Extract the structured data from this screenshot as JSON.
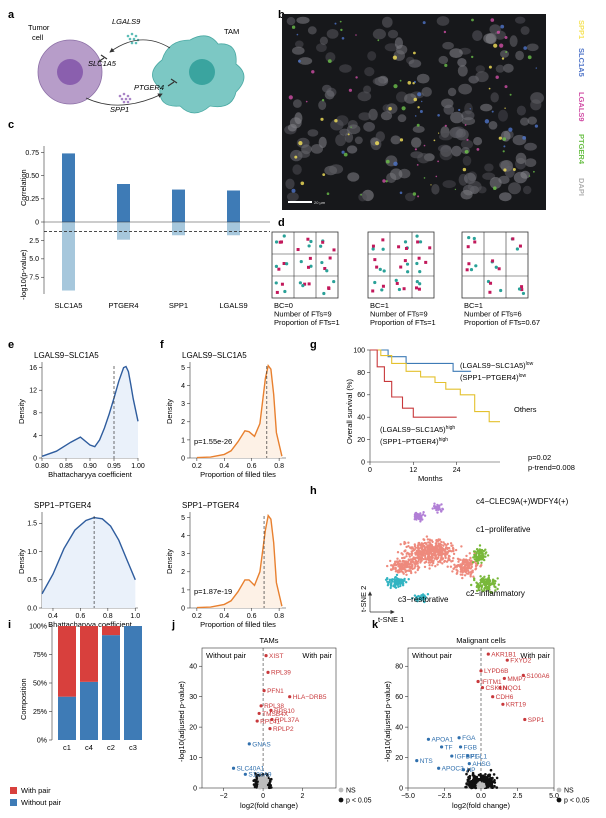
{
  "panel_labels": [
    "a",
    "b",
    "c",
    "d",
    "e",
    "f",
    "g",
    "h",
    "i",
    "j",
    "k"
  ],
  "schematic": {
    "tumor_label": "Tumor\ncell",
    "tam_label": "TAM",
    "ligand1": "LGALS9",
    "receptor1": "SLC1A5",
    "receptor2": "PTGER4",
    "ligand2": "SPP1",
    "tumor_color": "#b79dc9",
    "tam_color": "#7cc8c4"
  },
  "micrograph": {
    "channels": [
      {
        "name": "SPP1",
        "color": "#f6e35a"
      },
      {
        "name": "SLC1A5",
        "color": "#4f74c8"
      },
      {
        "name": "LGALS9",
        "color": "#d14fa6"
      },
      {
        "name": "PTGER4",
        "color": "#6cc04a"
      },
      {
        "name": "DAPI",
        "color": "#d9d9d9"
      }
    ],
    "scalebar": "20 µm"
  },
  "tiles": {
    "grids": [
      {
        "lines": [
          "BC=0",
          "Number of FTs=9",
          "Proportion of FTs=1"
        ]
      },
      {
        "lines": [
          "BC=1",
          "Number of FTs=9",
          "Proportion of FTs=1"
        ]
      },
      {
        "lines": [
          "BC=1",
          "Number of FTs=6",
          "Proportion of FTs=0.67"
        ]
      }
    ]
  },
  "chart_data": [
    {
      "panel": "c",
      "type": "bar",
      "categories": [
        "SLC1A5",
        "PTGER4",
        "SPP1",
        "LGALS9"
      ],
      "series": [
        {
          "values": [
            0.74,
            0.41,
            0.35,
            0.34
          ]
        },
        {
          "values": [
            9.3,
            2.4,
            1.8,
            1.8
          ]
        }
      ],
      "ylabel_top": "Correlation",
      "ylabel_bottom": "-log10(p-value)",
      "top_ticks": [
        "0",
        "0.25",
        "0.50",
        "0.75"
      ],
      "bottom_ticks": [
        "2.5",
        "5.0",
        "7.5"
      ],
      "ylim_top": [
        0,
        0.82
      ],
      "ylim_bottom": [
        0,
        9.5
      ],
      "threshold": 1.3,
      "colors": [
        "#3e7bb6",
        "#a6c7dc"
      ]
    },
    {
      "panel": "e",
      "type": "area",
      "plots": [
        {
          "title": "LGALS9−SLC1A5",
          "xlabel": "Bhattacharyya coefficient",
          "ylabel": "Density",
          "xlim": [
            0.8,
            1.0
          ],
          "ylim": [
            0,
            17
          ],
          "xticks": [
            "0.80",
            "0.85",
            "0.90",
            "0.95",
            "1.00"
          ],
          "yticks": [
            "0",
            "4",
            "8",
            "12",
            "16"
          ],
          "x": [
            0.8,
            0.83,
            0.86,
            0.88,
            0.9,
            0.91,
            0.92,
            0.93,
            0.94,
            0.95,
            0.96,
            0.97,
            0.975,
            0.98,
            0.985,
            0.99,
            1.0
          ],
          "y": [
            0.3,
            1.2,
            2.8,
            3.7,
            2.3,
            2.0,
            3.2,
            5.3,
            7.8,
            10.6,
            13.6,
            16.0,
            16.2,
            15.3,
            13.0,
            10.5,
            6.5
          ],
          "vline": 0.95
        },
        {
          "title": "SPP1−PTGER4",
          "xlabel": "Bhattacharyya coefficient",
          "ylabel": "Density",
          "xlim": [
            0.32,
            1.02
          ],
          "ylim": [
            0,
            1.7
          ],
          "xticks": [
            "0.4",
            "0.6",
            "0.8",
            "1.0"
          ],
          "yticks": [
            "0.0",
            "0.5",
            "1.0",
            "1.5"
          ],
          "x": [
            0.32,
            0.4,
            0.48,
            0.56,
            0.64,
            0.7,
            0.76,
            0.82,
            0.88,
            0.94,
            1.0
          ],
          "y": [
            0.25,
            0.6,
            1.05,
            1.38,
            1.55,
            1.6,
            1.58,
            1.45,
            1.2,
            0.85,
            0.5
          ],
          "vline": 0.7
        }
      ]
    },
    {
      "panel": "f",
      "type": "area",
      "plots": [
        {
          "title": "LGALS9−SLC1A5",
          "xlabel": "Proportion of filled tiles",
          "ylabel": "Density",
          "xlim": [
            0.15,
            0.85
          ],
          "ylim": [
            0,
            5.3
          ],
          "xticks": [
            "0.2",
            "0.4",
            "0.6",
            "0.8"
          ],
          "yticks": [
            "0",
            "1",
            "2",
            "3",
            "4",
            "5"
          ],
          "x": [
            0.2,
            0.3,
            0.4,
            0.45,
            0.5,
            0.55,
            0.58,
            0.62,
            0.66,
            0.7,
            0.72,
            0.74,
            0.76,
            0.78,
            0.82
          ],
          "y": [
            0.02,
            0.05,
            0.2,
            0.4,
            0.9,
            1.5,
            1.45,
            1.2,
            1.9,
            4.4,
            5.1,
            4.9,
            3.5,
            1.4,
            0.1
          ],
          "vline": 0.71,
          "pvalue": "p=1.55e-26"
        },
        {
          "title": "SPP1−PTGER4",
          "xlabel": "Proportion of filled tiles",
          "ylabel": "Density",
          "xlim": [
            0.15,
            0.85
          ],
          "ylim": [
            0,
            5.3
          ],
          "xticks": [
            "0.2",
            "0.4",
            "0.6",
            "0.8"
          ],
          "yticks": [
            "0",
            "1",
            "2",
            "3",
            "4",
            "5"
          ],
          "x": [
            0.2,
            0.3,
            0.4,
            0.45,
            0.5,
            0.55,
            0.58,
            0.62,
            0.66,
            0.7,
            0.72,
            0.74,
            0.76,
            0.78,
            0.82
          ],
          "y": [
            0.02,
            0.05,
            0.2,
            0.4,
            0.9,
            1.55,
            1.55,
            1.25,
            2.0,
            4.3,
            5.1,
            4.9,
            3.6,
            1.4,
            0.1
          ],
          "vline": 0.69,
          "pvalue": "p=1.87e-19"
        }
      ],
      "color": "#e8802f"
    },
    {
      "panel": "g",
      "type": "line",
      "ylabel": "Overall survival (%)",
      "xlabel": "Months",
      "xticks": [
        "0",
        "12",
        "24"
      ],
      "yticks": [
        "0",
        "20",
        "40",
        "60",
        "80",
        "100"
      ],
      "xlim": [
        0,
        36
      ],
      "ylim": [
        0,
        100
      ],
      "series": [
        {
          "color": "#3e7bb6",
          "x": [
            0,
            5,
            5,
            10,
            10,
            23,
            23,
            28
          ],
          "y": [
            100,
            100,
            94,
            94,
            88,
            88,
            81,
            81
          ]
        },
        {
          "color": "#e4c12e",
          "x": [
            0,
            3,
            3,
            6,
            6,
            10,
            10,
            14,
            14,
            18,
            18,
            21,
            21,
            25,
            25,
            29,
            29,
            33,
            33,
            36
          ],
          "y": [
            100,
            100,
            95,
            95,
            88,
            88,
            81,
            81,
            76,
            76,
            71,
            71,
            65,
            65,
            60,
            60,
            45,
            45,
            36,
            36
          ]
        },
        {
          "color": "#c8383b",
          "x": [
            0,
            2,
            2,
            4,
            4,
            6,
            6,
            9,
            9,
            12,
            12,
            24
          ],
          "y": [
            100,
            100,
            85,
            85,
            72,
            72,
            58,
            58,
            48,
            48,
            40,
            40
          ]
        }
      ],
      "labels": [
        "(LGALS9−SLC1A5)",
        "low",
        "(SPP1−PTGER4)",
        "low",
        "Others",
        "(LGALS9−SLC1A5)",
        "high",
        "(SPP1−PTGER4)",
        "high"
      ],
      "pvalues": [
        "p=0.02",
        "p-trend=0.008"
      ]
    },
    {
      "panel": "h",
      "type": "scatter",
      "xlabel": "t-SNE 1",
      "ylabel": "t-SNE 2",
      "clusters": [
        {
          "name": "c4−CLEC9A(+)WDFY4(+)",
          "color": "#b17fd6"
        },
        {
          "name": "c1−proliferative",
          "color": "#ee8a7d"
        },
        {
          "name": "c2−inflammatory",
          "color": "#79b83a"
        },
        {
          "name": "c3−restorative",
          "color": "#33b4c2"
        }
      ]
    },
    {
      "panel": "i",
      "type": "bar",
      "categories": [
        "c1",
        "c4",
        "c2",
        "c3"
      ],
      "series": [
        {
          "name": "Without pair",
          "values": [
            38,
            51,
            92,
            100
          ],
          "color": "#3e7bb6"
        },
        {
          "name": "With pair",
          "values": [
            62,
            49,
            8,
            0
          ],
          "color": "#d8403d"
        }
      ],
      "ylabel": "Composition",
      "yticks": [
        "0%",
        "25%",
        "50%",
        "75%",
        "100%"
      ],
      "ylim": [
        0,
        100
      ]
    },
    {
      "panel": "j",
      "type": "scatter",
      "title": "TAMs",
      "xlabel": "log2(fold change)",
      "ylabel": "-log10(adjusted p-value)",
      "xticks": [
        "−2",
        "0",
        "2"
      ],
      "yticks": [
        "0",
        "10",
        "20",
        "30",
        "40"
      ],
      "xlim": [
        -3.1,
        3.7
      ],
      "ylim": [
        0,
        46
      ],
      "corner_left": "Without pair",
      "corner_right": "With pair",
      "red_genes": [
        {
          "label": "XIST",
          "x": 0.15,
          "y": 43.5
        },
        {
          "label": "RPL39",
          "x": 0.25,
          "y": 38
        },
        {
          "label": "PFN1",
          "x": 0.05,
          "y": 32
        },
        {
          "label": "HLA−DRB5",
          "x": 1.35,
          "y": 30
        },
        {
          "label": "RPL38",
          "x": -0.1,
          "y": 27
        },
        {
          "label": "RPS10",
          "x": 0.4,
          "y": 25.5
        },
        {
          "label": "TMSB4X",
          "x": -0.2,
          "y": 24.5
        },
        {
          "label": "RPL37A",
          "x": 0.45,
          "y": 22.5
        },
        {
          "label": "RPL41",
          "x": -0.3,
          "y": 22
        },
        {
          "label": "RPLP2",
          "x": 0.35,
          "y": 19.5
        }
      ],
      "blue_genes": [
        {
          "label": "GNAS",
          "x": -0.7,
          "y": 14.5
        },
        {
          "label": "SLC40A1",
          "x": -1.5,
          "y": 6.5
        },
        {
          "label": "S100A9",
          "x": -0.9,
          "y": 4.5
        }
      ],
      "legend": [
        "NS",
        "p < 0.05"
      ]
    },
    {
      "panel": "k",
      "type": "scatter",
      "title": "Malignant cells",
      "xlabel": "log2(fold change)",
      "ylabel": "-log10(adjusted p-value)",
      "xticks": [
        "−5.0",
        "−2.5",
        "0.0",
        "2.5",
        "5.0"
      ],
      "yticks": [
        "0",
        "20",
        "40",
        "60",
        "80"
      ],
      "xlim": [
        -5,
        5
      ],
      "ylim": [
        0,
        92
      ],
      "corner_left": "Without pair",
      "corner_right": "With pair",
      "red_genes": [
        {
          "label": "AKR1B1",
          "x": 0.5,
          "y": 88
        },
        {
          "label": "FXYD2",
          "x": 1.8,
          "y": 84
        },
        {
          "label": "LYPD6B",
          "x": 0.0,
          "y": 77
        },
        {
          "label": "S100A6",
          "x": 2.9,
          "y": 74
        },
        {
          "label": "MMP7",
          "x": 1.6,
          "y": 72
        },
        {
          "label": "IFITM1",
          "x": -0.2,
          "y": 70
        },
        {
          "label": "CSK1N",
          "x": 0.1,
          "y": 66
        },
        {
          "label": "NQO1",
          "x": 1.3,
          "y": 66
        },
        {
          "label": "CDH6",
          "x": 0.8,
          "y": 60
        },
        {
          "label": "KRT19",
          "x": 1.5,
          "y": 55
        },
        {
          "label": "SPP1",
          "x": 3.0,
          "y": 45
        }
      ],
      "blue_genes": [
        {
          "label": "APOA1",
          "x": -3.6,
          "y": 32
        },
        {
          "label": "FGA",
          "x": -1.5,
          "y": 33
        },
        {
          "label": "TF",
          "x": -2.7,
          "y": 27
        },
        {
          "label": "FGB",
          "x": -1.4,
          "y": 27
        },
        {
          "label": "IGFBP1",
          "x": -2.0,
          "y": 21
        },
        {
          "label": "FGL1",
          "x": -0.9,
          "y": 21
        },
        {
          "label": "NTS",
          "x": -4.4,
          "y": 18
        },
        {
          "label": "APOC3",
          "x": -2.9,
          "y": 13
        },
        {
          "label": "HP",
          "x": -1.2,
          "y": 12
        },
        {
          "label": "AHSG",
          "x": -0.8,
          "y": 16
        }
      ],
      "legend": [
        "NS",
        "p < 0.05"
      ]
    }
  ]
}
